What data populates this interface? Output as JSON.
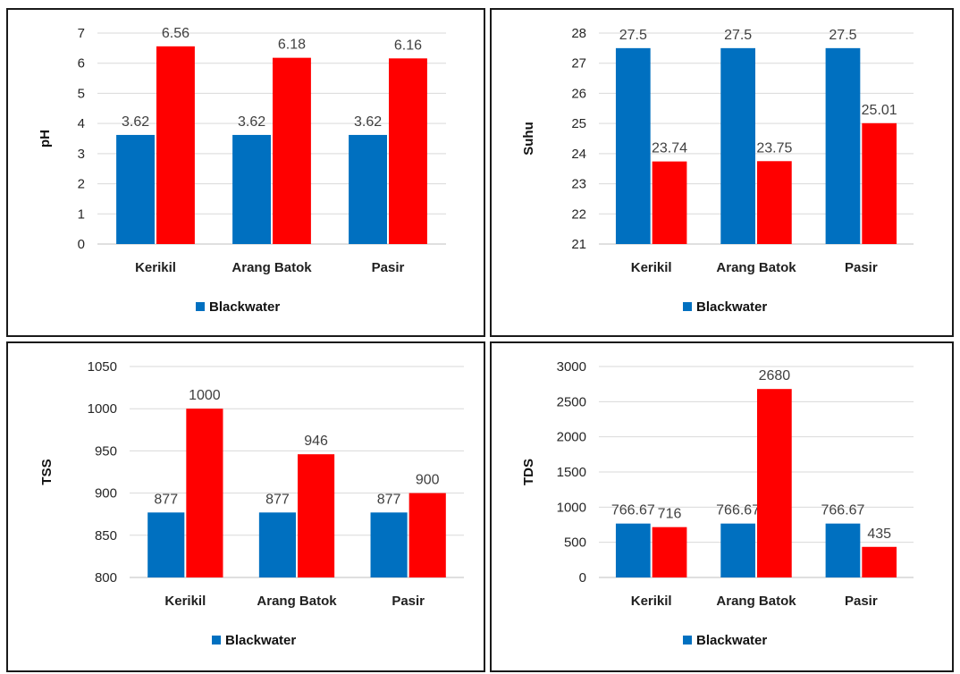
{
  "colors": {
    "series1": "#0070c0",
    "series2": "#ff0000",
    "grid": "#d9d9d9"
  },
  "chart_data": [
    {
      "type": "bar",
      "categories": [
        "Kerikil",
        "Arang Batok",
        "Pasir"
      ],
      "ylabel": "pH",
      "ylim": [
        0,
        7
      ],
      "yticks": [
        "0",
        "1",
        "2",
        "3",
        "4",
        "5",
        "6",
        "7"
      ],
      "grid": true,
      "legend": {
        "position": "bottom",
        "entries": [
          "Blackwater"
        ]
      },
      "series": [
        {
          "name": "Blackwater",
          "values": [
            3.62,
            3.62,
            3.62
          ],
          "labels": [
            "3.62",
            "3.62",
            "3.62"
          ]
        },
        {
          "values": [
            6.56,
            6.18,
            6.16
          ],
          "labels": [
            "6.56",
            "6.18",
            "6.16"
          ]
        }
      ]
    },
    {
      "type": "bar",
      "categories": [
        "Kerikil",
        "Arang Batok",
        "Pasir"
      ],
      "ylabel": "Suhu",
      "ylim": [
        21,
        28
      ],
      "yticks": [
        "21",
        "22",
        "23",
        "24",
        "25",
        "26",
        "27",
        "28"
      ],
      "grid": true,
      "legend": {
        "position": "bottom",
        "entries": [
          "Blackwater"
        ]
      },
      "series": [
        {
          "name": "Blackwater",
          "values": [
            27.5,
            27.5,
            27.5
          ],
          "labels": [
            "27.5",
            "27.5",
            "27.5"
          ]
        },
        {
          "values": [
            23.74,
            23.75,
            25.01
          ],
          "labels": [
            "23.74",
            "23.75",
            "25.01"
          ]
        }
      ]
    },
    {
      "type": "bar",
      "categories": [
        "Kerikil",
        "Arang Batok",
        "Pasir"
      ],
      "ylabel": "TSS",
      "ylim": [
        800,
        1050
      ],
      "yticks": [
        "800",
        "850",
        "900",
        "950",
        "1000",
        "1050"
      ],
      "grid": true,
      "legend": {
        "position": "bottom",
        "entries": [
          "Blackwater"
        ]
      },
      "series": [
        {
          "name": "Blackwater",
          "values": [
            877,
            877,
            877
          ],
          "labels": [
            "877",
            "877",
            "877"
          ]
        },
        {
          "values": [
            1000,
            946,
            900
          ],
          "labels": [
            "1000",
            "946",
            "900"
          ]
        }
      ]
    },
    {
      "type": "bar",
      "categories": [
        "Kerikil",
        "Arang Batok",
        "Pasir"
      ],
      "ylabel": "TDS",
      "ylim": [
        0,
        3000
      ],
      "yticks": [
        "0",
        "500",
        "1000",
        "1500",
        "2000",
        "2500",
        "3000"
      ],
      "grid": true,
      "legend": {
        "position": "bottom",
        "entries": [
          "Blackwater"
        ]
      },
      "series": [
        {
          "name": "Blackwater",
          "values": [
            766.67,
            766.67,
            766.67
          ],
          "labels": [
            "766.67",
            "766.67",
            "766.67"
          ]
        },
        {
          "values": [
            716,
            2680,
            435
          ],
          "labels": [
            "716",
            "2680",
            "435"
          ]
        }
      ]
    }
  ]
}
